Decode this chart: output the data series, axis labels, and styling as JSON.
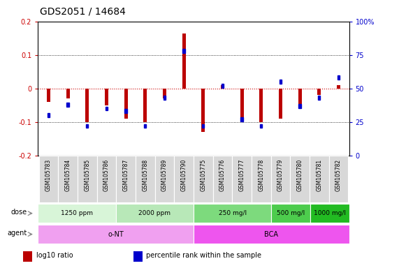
{
  "title": "GDS2051 / 14684",
  "samples": [
    "GSM105783",
    "GSM105784",
    "GSM105785",
    "GSM105786",
    "GSM105787",
    "GSM105788",
    "GSM105789",
    "GSM105790",
    "GSM105775",
    "GSM105776",
    "GSM105777",
    "GSM105778",
    "GSM105779",
    "GSM105780",
    "GSM105781",
    "GSM105782"
  ],
  "log10_ratio": [
    -0.04,
    -0.03,
    -0.1,
    -0.05,
    -0.09,
    -0.1,
    -0.03,
    0.165,
    -0.13,
    0.01,
    -0.1,
    -0.1,
    -0.09,
    -0.06,
    -0.02,
    0.01
  ],
  "percentile_rank": [
    30,
    38,
    22,
    35,
    33,
    22,
    43,
    78,
    22,
    52,
    27,
    22,
    55,
    37,
    43,
    58
  ],
  "dose_groups": [
    {
      "label": "1250 ppm",
      "start": 0,
      "end": 4,
      "color": "#d8f5d8"
    },
    {
      "label": "2000 ppm",
      "start": 4,
      "end": 8,
      "color": "#b8e8b8"
    },
    {
      "label": "250 mg/l",
      "start": 8,
      "end": 12,
      "color": "#7dda7d"
    },
    {
      "label": "500 mg/l",
      "start": 12,
      "end": 14,
      "color": "#4dcc4d"
    },
    {
      "label": "1000 mg/l",
      "start": 14,
      "end": 16,
      "color": "#22bb22"
    }
  ],
  "agent_groups": [
    {
      "label": "o-NT",
      "start": 0,
      "end": 8,
      "color": "#f0a0f0"
    },
    {
      "label": "BCA",
      "start": 8,
      "end": 16,
      "color": "#ee55ee"
    }
  ],
  "ylim": [
    -0.2,
    0.2
  ],
  "yticks_left": [
    -0.2,
    -0.1,
    0.0,
    0.1,
    0.2
  ],
  "yticks_right": [
    0,
    25,
    50,
    75,
    100
  ],
  "bar_color_red": "#bb0000",
  "bar_color_blue": "#0000cc",
  "zero_line_color": "#cc0000",
  "grid_color": "#000000",
  "bg_color": "#ffffff",
  "title_fontsize": 10,
  "legend_items": [
    {
      "color": "#bb0000",
      "label": "log10 ratio"
    },
    {
      "color": "#0000cc",
      "label": "percentile rank within the sample"
    }
  ]
}
